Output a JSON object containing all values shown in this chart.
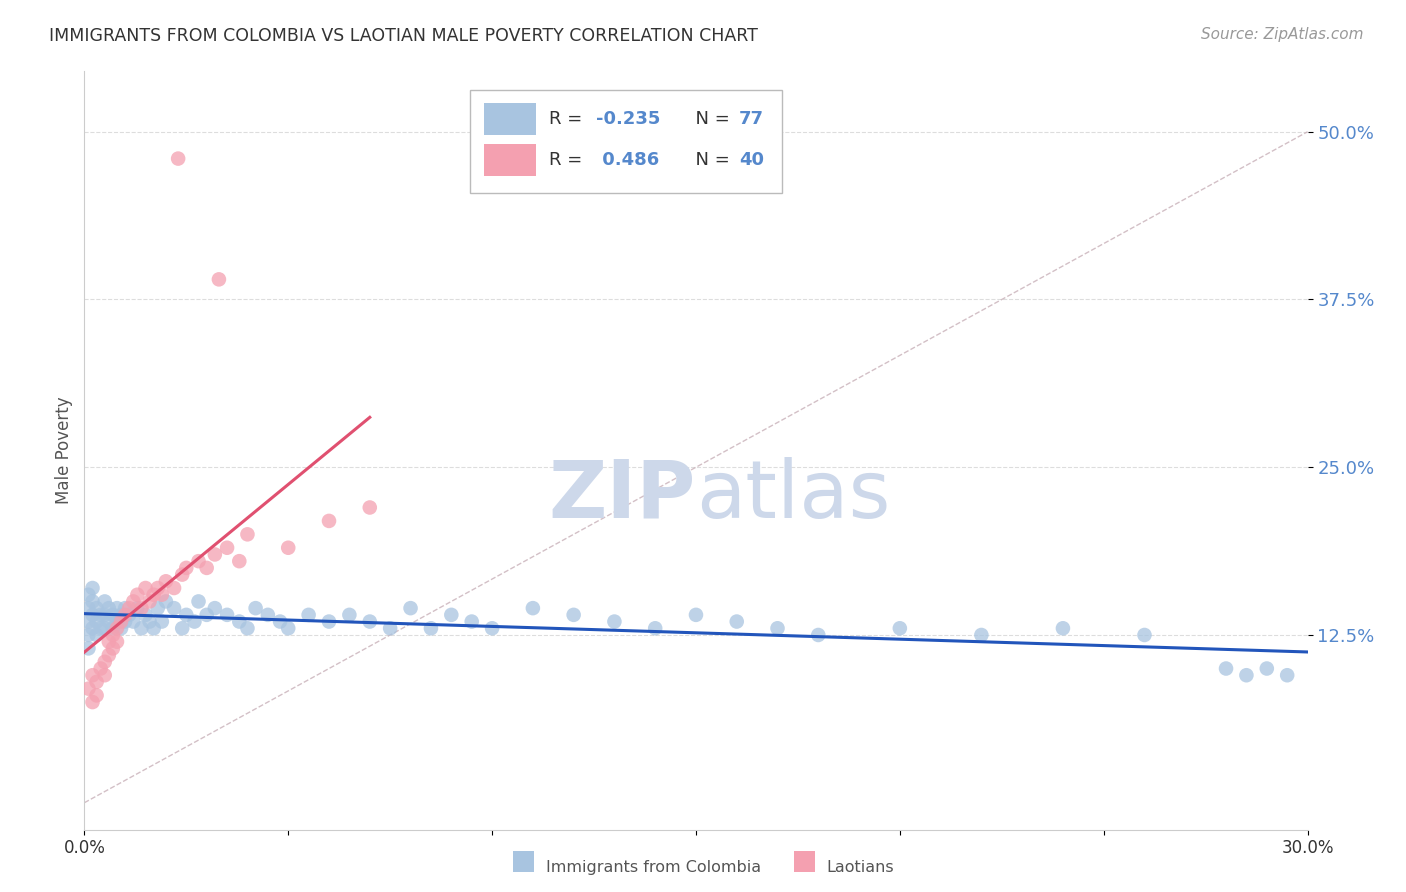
{
  "title": "IMMIGRANTS FROM COLOMBIA VS LAOTIAN MALE POVERTY CORRELATION CHART",
  "source": "Source: ZipAtlas.com",
  "ylabel": "Male Poverty",
  "y_tick_vals": [
    0.125,
    0.25,
    0.375,
    0.5
  ],
  "y_tick_labels": [
    "12.5%",
    "25.0%",
    "37.5%",
    "50.0%"
  ],
  "x_range": [
    0.0,
    0.3
  ],
  "y_range": [
    -0.02,
    0.545
  ],
  "colombia_R": -0.235,
  "colombia_N": 77,
  "laotian_R": 0.486,
  "laotian_N": 40,
  "colombia_color": "#a8c4e0",
  "laotian_color": "#f4a0b0",
  "colombia_line_color": "#2255bb",
  "laotian_line_color": "#e05070",
  "diagonal_color": "#c8b0b8",
  "background_color": "#ffffff",
  "grid_color": "#dddddd",
  "watermark_color": "#cdd8ea",
  "tick_color": "#5588cc",
  "colombia_x": [
    0.001,
    0.001,
    0.001,
    0.001,
    0.001,
    0.002,
    0.002,
    0.002,
    0.002,
    0.003,
    0.003,
    0.003,
    0.004,
    0.004,
    0.005,
    0.005,
    0.005,
    0.006,
    0.006,
    0.007,
    0.007,
    0.008,
    0.008,
    0.009,
    0.009,
    0.01,
    0.01,
    0.011,
    0.012,
    0.013,
    0.014,
    0.015,
    0.016,
    0.017,
    0.018,
    0.019,
    0.02,
    0.022,
    0.024,
    0.025,
    0.027,
    0.028,
    0.03,
    0.032,
    0.035,
    0.038,
    0.04,
    0.042,
    0.045,
    0.048,
    0.05,
    0.055,
    0.06,
    0.065,
    0.07,
    0.075,
    0.08,
    0.085,
    0.09,
    0.095,
    0.1,
    0.11,
    0.12,
    0.13,
    0.14,
    0.15,
    0.16,
    0.17,
    0.18,
    0.2,
    0.22,
    0.24,
    0.26,
    0.28,
    0.285,
    0.29,
    0.295
  ],
  "colombia_y": [
    0.155,
    0.145,
    0.135,
    0.125,
    0.115,
    0.16,
    0.15,
    0.14,
    0.13,
    0.145,
    0.135,
    0.125,
    0.14,
    0.13,
    0.15,
    0.14,
    0.13,
    0.145,
    0.135,
    0.14,
    0.13,
    0.145,
    0.135,
    0.14,
    0.13,
    0.145,
    0.135,
    0.14,
    0.135,
    0.145,
    0.13,
    0.14,
    0.135,
    0.13,
    0.145,
    0.135,
    0.15,
    0.145,
    0.13,
    0.14,
    0.135,
    0.15,
    0.14,
    0.145,
    0.14,
    0.135,
    0.13,
    0.145,
    0.14,
    0.135,
    0.13,
    0.14,
    0.135,
    0.14,
    0.135,
    0.13,
    0.145,
    0.13,
    0.14,
    0.135,
    0.13,
    0.145,
    0.14,
    0.135,
    0.13,
    0.14,
    0.135,
    0.13,
    0.125,
    0.13,
    0.125,
    0.13,
    0.125,
    0.1,
    0.095,
    0.1,
    0.095
  ],
  "laotian_x": [
    0.001,
    0.002,
    0.002,
    0.003,
    0.003,
    0.004,
    0.005,
    0.005,
    0.006,
    0.006,
    0.007,
    0.007,
    0.008,
    0.008,
    0.009,
    0.01,
    0.011,
    0.012,
    0.013,
    0.014,
    0.015,
    0.016,
    0.017,
    0.018,
    0.019,
    0.02,
    0.022,
    0.024,
    0.025,
    0.028,
    0.03,
    0.032,
    0.035,
    0.038,
    0.04,
    0.05,
    0.06,
    0.07,
    0.023,
    0.033
  ],
  "laotian_y": [
    0.085,
    0.075,
    0.095,
    0.08,
    0.09,
    0.1,
    0.095,
    0.105,
    0.11,
    0.12,
    0.115,
    0.125,
    0.13,
    0.12,
    0.135,
    0.14,
    0.145,
    0.15,
    0.155,
    0.145,
    0.16,
    0.15,
    0.155,
    0.16,
    0.155,
    0.165,
    0.16,
    0.17,
    0.175,
    0.18,
    0.175,
    0.185,
    0.19,
    0.18,
    0.2,
    0.19,
    0.21,
    0.22,
    0.48,
    0.39
  ]
}
